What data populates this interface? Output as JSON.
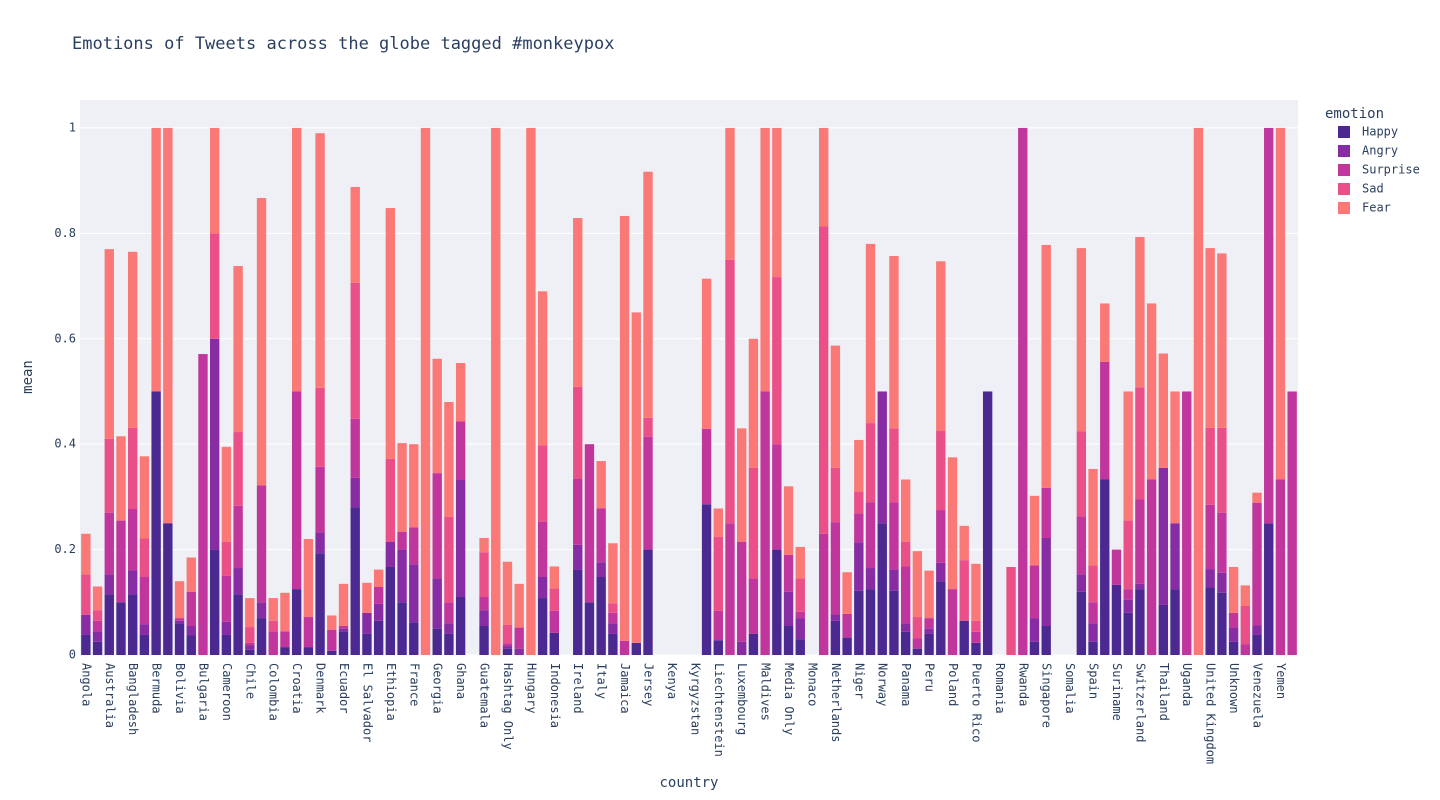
{
  "chart_data": {
    "type": "stacked_bar",
    "title": "Emotions of Tweets across the globe tagged #monkeypox",
    "x_label": "country",
    "y_label": "mean",
    "legend_title": "emotion",
    "categories": [
      "Angola",
      null,
      "Australia",
      null,
      "Bangladesh",
      null,
      "Bermuda",
      null,
      "Bolivia",
      null,
      "Bulgaria",
      null,
      "Cameroon",
      null,
      "Chile",
      null,
      "Colombia",
      null,
      "Croatia",
      null,
      "Denmark",
      null,
      "Ecuador",
      null,
      "El Salvador",
      null,
      "Ethiopia",
      null,
      "France",
      null,
      "Georgia",
      null,
      "Ghana",
      null,
      "Guatemala",
      null,
      "Hashtag Only",
      null,
      "Hungary",
      null,
      "Indonesia",
      null,
      "Ireland",
      null,
      "Italy",
      null,
      "Jamaica",
      null,
      "Jersey",
      null,
      "Kenya",
      null,
      "Kyrgyzstan",
      null,
      "Liechtenstein",
      null,
      "Luxembourg",
      null,
      "Maldives",
      null,
      "Media Only",
      null,
      "Monaco",
      null,
      "Netherlands",
      null,
      "Niger",
      null,
      "Norway",
      null,
      "Panama",
      null,
      "Peru",
      null,
      "Poland",
      null,
      "Puerto Rico",
      null,
      "Romania",
      null,
      "Rwanda",
      null,
      "Singapore",
      null,
      "Somalia",
      null,
      "Spain",
      null,
      "Suriname",
      null,
      "Switzerland",
      null,
      "Thailand",
      null,
      "Uganda",
      null,
      "United Kingdom",
      null,
      "Unknown",
      null,
      "Venezuela",
      null,
      "Yemen",
      null
    ],
    "series": [
      {
        "name": "Happy",
        "color": "#4b2991",
        "values": [
          0.038,
          0.025,
          0.115,
          0.1,
          0.115,
          0.038,
          0.5,
          0.25,
          0.06,
          0.037,
          0,
          0.2,
          0.038,
          0.115,
          0.01,
          0.07,
          0,
          0.015,
          0.125,
          0.015,
          0.193,
          0.008,
          0.045,
          0.28,
          0.04,
          0.065,
          0.167,
          0.1,
          0.062,
          0,
          0.05,
          0.04,
          0.11,
          null,
          0.055,
          0,
          0.012,
          0,
          0,
          0.108,
          0.042,
          null,
          0.162,
          0.1,
          0.148,
          0.04,
          0,
          0.023,
          0.2,
          null,
          null,
          null,
          null,
          0.286,
          0.028,
          0,
          0,
          0.04,
          0,
          0.2,
          0.055,
          0.03,
          null,
          0,
          0.065,
          0.033,
          0.122,
          0.125,
          0.25,
          0.122,
          0.044,
          0.012,
          0.04,
          0.14,
          0,
          0.065,
          0.023,
          0.5,
          null,
          0,
          0,
          0.025,
          0.055,
          null,
          null,
          0.12,
          0.025,
          0.333,
          0.133,
          0.08,
          0.125,
          0,
          0.095,
          0.125,
          0,
          0,
          0.128,
          0.118,
          0.025,
          0,
          0.038,
          0.25,
          0,
          0
        ]
      },
      {
        "name": "Angry",
        "color": "#872ca2",
        "values": [
          0.038,
          0.02,
          0.038,
          0,
          0.046,
          0.02,
          0,
          0,
          0.005,
          0.018,
          0,
          0.4,
          0.025,
          0.05,
          0.008,
          0.03,
          0,
          0,
          0,
          0,
          0.04,
          0,
          0.005,
          0.056,
          0.04,
          0.032,
          0.048,
          0.1,
          0.11,
          0,
          0.095,
          0.02,
          0.222,
          null,
          0.03,
          0,
          0.005,
          0.012,
          0,
          0.04,
          0,
          null,
          0.047,
          0,
          0.028,
          0.02,
          0,
          0,
          0,
          null,
          null,
          null,
          null,
          0,
          0,
          0,
          0.025,
          0,
          0,
          0,
          0.065,
          0.04,
          null,
          0,
          0.012,
          0,
          0.092,
          0.04,
          0.25,
          0.04,
          0.016,
          0,
          0.01,
          0.035,
          0,
          0,
          0,
          0,
          null,
          0,
          0,
          0.045,
          0.167,
          null,
          null,
          0.033,
          0.035,
          0,
          0,
          0.025,
          0.01,
          0,
          0.26,
          0.125,
          0,
          0,
          0.035,
          0.038,
          0.027,
          0,
          0.018,
          0,
          0,
          0
        ]
      },
      {
        "name": "Surprise",
        "color": "#c0369d",
        "values": [
          0,
          0.02,
          0.117,
          0.155,
          0.116,
          0.09,
          0,
          0,
          0.005,
          0.065,
          0.571,
          0,
          0.087,
          0.118,
          0.005,
          0.222,
          0.045,
          0.03,
          0.375,
          0.057,
          0.124,
          0.04,
          0.005,
          0.112,
          0,
          0.032,
          0,
          0.034,
          0.07,
          0,
          0.2,
          0.04,
          0.111,
          null,
          0.025,
          0,
          0.005,
          0.04,
          0,
          0.105,
          0.042,
          null,
          0.125,
          0.3,
          0.102,
          0.02,
          0.027,
          0,
          0.214,
          null,
          null,
          null,
          null,
          0.143,
          0.056,
          0.25,
          0.19,
          0.105,
          0.5,
          0.2,
          0.07,
          0.012,
          null,
          0.23,
          0.175,
          0.045,
          0.055,
          0.125,
          0,
          0.128,
          0.108,
          0.02,
          0.02,
          0.1,
          0.125,
          0,
          0.021,
          0,
          null,
          0,
          1,
          0.1,
          0.095,
          null,
          null,
          0.11,
          0.04,
          0.223,
          0.067,
          0.02,
          0.16,
          0.333,
          0,
          0,
          0.5,
          0,
          0.122,
          0.114,
          0.028,
          0.02,
          0.233,
          0.75,
          0.333,
          0.5
        ]
      },
      {
        "name": "Sad",
        "color": "#ea4f88",
        "values": [
          0.077,
          0.02,
          0.14,
          0,
          0.154,
          0.073,
          0,
          0,
          0,
          0,
          0,
          0.2,
          0.065,
          0.14,
          0.03,
          0,
          0.02,
          0,
          0,
          0,
          0.15,
          0,
          0,
          0.258,
          0,
          0,
          0.157,
          0,
          0,
          0,
          0,
          0.162,
          0,
          null,
          0.085,
          0,
          0.035,
          0,
          0,
          0.145,
          0.042,
          null,
          0.175,
          0,
          0,
          0.018,
          0,
          0,
          0.036,
          null,
          null,
          null,
          null,
          0,
          0.14,
          0.5,
          0,
          0.21,
          0,
          0.317,
          0,
          0.063,
          null,
          0.583,
          0.103,
          0,
          0.041,
          0.15,
          0,
          0.14,
          0.047,
          0.04,
          0,
          0.15,
          0,
          0.115,
          0.021,
          0,
          null,
          0.167,
          0,
          0,
          0,
          null,
          null,
          0.161,
          0.07,
          0,
          0,
          0.13,
          0.213,
          0,
          0,
          0,
          0,
          0,
          0.146,
          0.161,
          0,
          0.073,
          0,
          0,
          0,
          0
        ]
      },
      {
        "name": "Fear",
        "color": "#fa7876",
        "values": [
          0.077,
          0.045,
          0.36,
          0.16,
          0.334,
          0.156,
          0.5,
          0.75,
          0.07,
          0.065,
          0,
          0.2,
          0.18,
          0.315,
          0.055,
          0.545,
          0.043,
          0.073,
          0.5,
          0.148,
          0.483,
          0.027,
          0.08,
          0.182,
          0.057,
          0.033,
          0.476,
          0.168,
          0.158,
          1,
          0.217,
          0.218,
          0.111,
          null,
          0.027,
          1,
          0.12,
          0.083,
          1,
          0.292,
          0.042,
          null,
          0.32,
          0,
          0.09,
          0.114,
          0.806,
          0.627,
          0.467,
          null,
          null,
          null,
          null,
          0.285,
          0.054,
          0.25,
          0.215,
          0.245,
          0.5,
          0.283,
          0.13,
          0.06,
          null,
          0.187,
          0.232,
          0.079,
          0.098,
          0.34,
          0,
          0.327,
          0.118,
          0.125,
          0.09,
          0.322,
          0.25,
          0.065,
          0.108,
          0,
          null,
          0,
          0,
          0.132,
          0.461,
          null,
          null,
          0.348,
          0.183,
          0.111,
          0,
          0.245,
          0.285,
          0.334,
          0.217,
          0.25,
          0,
          1,
          0.341,
          0.331,
          0.087,
          0.039,
          0.019,
          0,
          0.667,
          0
        ]
      }
    ],
    "ylim": [
      0,
      1.053
    ],
    "yticks": [
      0,
      0.2,
      0.4,
      0.6,
      0.8,
      1
    ],
    "grid": true
  }
}
